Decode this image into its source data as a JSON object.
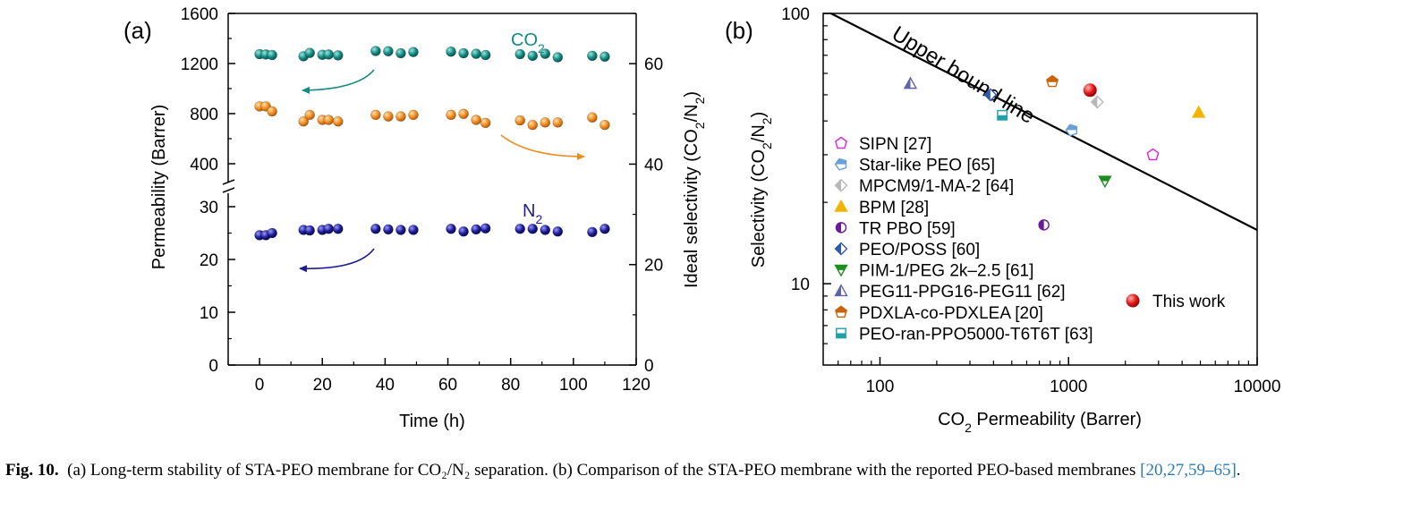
{
  "figure": {
    "caption_label": "Fig. 10.",
    "caption_text": "(a) Long-term stability of STA-PEO membrane for CO₂/N₂ separation. (b) Comparison of the STA-PEO membrane with the reported PEO-based membranes",
    "caption_refs": "[20,27,59–65]",
    "caption_end": "."
  },
  "colors": {
    "co2": "#138a82",
    "sel": "#f08c1e",
    "n2": "#1c1c96",
    "line": "#000000",
    "ref_link": "#2a7ab9"
  },
  "chart_data": [
    {
      "panel_label": "(a)",
      "type": "scatter",
      "xlabel": "Time (h)",
      "ylabel_left": "Permeability (Barrer)",
      "ylabel_right": "Ideal selectivity (CO₂/N₂)",
      "xlim": [
        -10,
        120
      ],
      "x_ticks": [
        0,
        20,
        40,
        60,
        80,
        100,
        120
      ],
      "y_left_upper_lim": [
        300,
        1600
      ],
      "y_left_upper_ticks": [
        400,
        800,
        1200,
        1600
      ],
      "y_left_lower_lim": [
        0,
        32
      ],
      "y_left_lower_ticks": [
        0,
        10,
        20,
        30
      ],
      "y_right_lim": [
        0,
        70
      ],
      "y_right_ticks": [
        0,
        20,
        40,
        60
      ],
      "axis_break": true,
      "series_labels": {
        "co2": "CO₂",
        "n2": "N₂"
      },
      "series": [
        {
          "name": "CO2",
          "axis": "left-upper",
          "color_key": "co2",
          "x": [
            0,
            2,
            4,
            14,
            16,
            20,
            22,
            25,
            37,
            41,
            45,
            49,
            61,
            65,
            69,
            72,
            83,
            87,
            91,
            95,
            106,
            110
          ],
          "y": [
            1275,
            1272,
            1268,
            1258,
            1285,
            1270,
            1272,
            1265,
            1300,
            1298,
            1282,
            1292,
            1295,
            1282,
            1278,
            1268,
            1275,
            1262,
            1278,
            1250,
            1262,
            1255
          ]
        },
        {
          "name": "Selectivity",
          "axis": "right",
          "color_key": "sel",
          "x": [
            0,
            2,
            4,
            14,
            16,
            20,
            22,
            25,
            37,
            41,
            45,
            49,
            61,
            65,
            69,
            72,
            83,
            87,
            91,
            95,
            106,
            110
          ],
          "y": [
            51.5,
            51.5,
            50.5,
            48.5,
            49.8,
            48.8,
            48.8,
            48.5,
            49.8,
            49.5,
            49.5,
            49.8,
            49.8,
            50.0,
            48.8,
            48.2,
            48.7,
            47.8,
            48.3,
            48.3,
            49.3,
            47.8
          ]
        },
        {
          "name": "N2",
          "axis": "left-lower",
          "color_key": "n2",
          "x": [
            0,
            2,
            4,
            14,
            16,
            20,
            22,
            25,
            37,
            41,
            45,
            49,
            61,
            65,
            69,
            72,
            83,
            87,
            91,
            95,
            106,
            110
          ],
          "y": [
            24.6,
            24.6,
            25.0,
            25.6,
            25.5,
            25.6,
            25.8,
            25.8,
            25.8,
            25.7,
            25.6,
            25.6,
            25.8,
            25.3,
            25.7,
            25.9,
            25.8,
            25.8,
            25.6,
            25.3,
            25.2,
            25.8
          ]
        }
      ],
      "trend_arrows": [
        "co2-to-left",
        "selectivity-to-right",
        "n2-to-left"
      ]
    },
    {
      "panel_label": "(b)",
      "type": "scatter",
      "xlabel": "CO₂ Permeability (Barrer)",
      "ylabel": "Selectivity (CO₂/N₂)",
      "x_scale": "log",
      "y_scale": "log",
      "xlim": [
        50,
        10000
      ],
      "ylim": [
        5,
        100
      ],
      "x_ticks": [
        100,
        1000,
        10000
      ],
      "x_tick_labels": [
        "100",
        "1000",
        "10000"
      ],
      "y_ticks": [
        10,
        100
      ],
      "y_tick_labels": [
        "10",
        "100"
      ],
      "upper_bound": {
        "label": "Upper bound line",
        "points": [
          [
            55,
            100
          ],
          [
            10000,
            15.8
          ]
        ]
      },
      "points": [
        {
          "name": "SIPN [27]",
          "x": 2800,
          "y": 30,
          "marker": "pentagon",
          "color": "#e020e0"
        },
        {
          "name": "Star-like PEO [65]",
          "x": 1040,
          "y": 37,
          "marker": "pentagon-left",
          "color": "#6aa0d8"
        },
        {
          "name": "MPCM9/1-MA-2 [64]",
          "x": 1420,
          "y": 47,
          "marker": "diamond",
          "color": "#b8b8b8"
        },
        {
          "name": "BPM [28]",
          "x": 4900,
          "y": 43,
          "marker": "triangle-up",
          "color": "#f2b400"
        },
        {
          "name": "TR PBO [59]",
          "x": 740,
          "y": 16.5,
          "marker": "circle-half",
          "color": "#6a1a9a"
        },
        {
          "name": "PEO/POSS [60]",
          "x": 385,
          "y": 50,
          "marker": "diamond-half",
          "color": "#2e5aa8"
        },
        {
          "name": "PIM-1/PEG 2k–2.5 [61]",
          "x": 1560,
          "y": 24,
          "marker": "triangle-down",
          "color": "#1e8c1e"
        },
        {
          "name": "PEG11-PPG16-PEG11 [62]",
          "x": 145,
          "y": 55,
          "marker": "triangle-up-half",
          "color": "#6262a8"
        },
        {
          "name": "PDXLA-co-PDXLEA [20]",
          "x": 820,
          "y": 56,
          "marker": "pentagon-half",
          "color": "#c8640a"
        },
        {
          "name": "PEO-ran-PPO5000-T6T6T [63]",
          "x": 445,
          "y": 42,
          "marker": "square-half",
          "color": "#20a0a8"
        },
        {
          "name": "This work",
          "x": 1300,
          "y": 52,
          "marker": "sphere",
          "color": "#e01818"
        }
      ]
    }
  ]
}
